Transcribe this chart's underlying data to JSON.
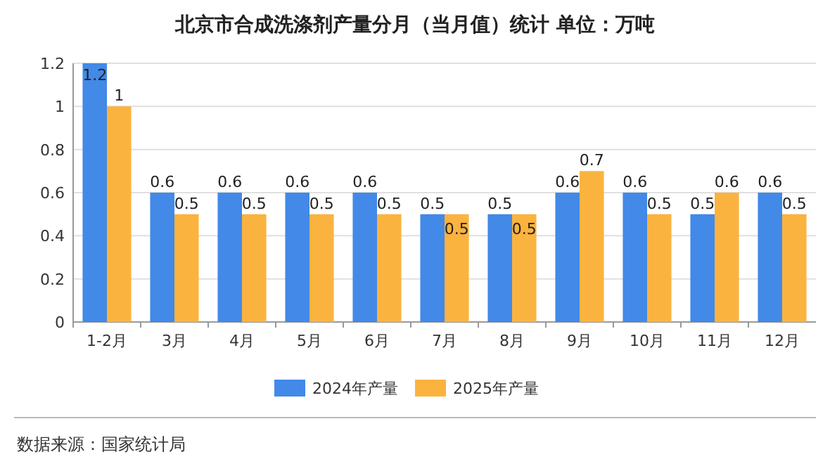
{
  "chart_data": {
    "type": "bar",
    "title": "北京市合成洗涤剂产量分月（当月值）统计  单位：万吨",
    "categories": [
      "1-2月",
      "3月",
      "4月",
      "5月",
      "6月",
      "7月",
      "8月",
      "9月",
      "10月",
      "11月",
      "12月"
    ],
    "series": [
      {
        "name": "2024年产量",
        "color": "#4289e8",
        "values": [
          1.2,
          0.6,
          0.6,
          0.6,
          0.6,
          0.5,
          0.5,
          0.6,
          0.6,
          0.5,
          0.6
        ]
      },
      {
        "name": "2025年产量",
        "color": "#fbb33f",
        "values": [
          1,
          0.5,
          0.5,
          0.5,
          0.5,
          0.5,
          0.5,
          0.7,
          0.5,
          0.6,
          0.5
        ]
      }
    ],
    "ylim": [
      0,
      1.2
    ],
    "yticks": [
      0,
      0.2,
      0.4,
      0.6,
      0.8,
      1,
      1.2
    ],
    "grid": "y",
    "legend": "bottom",
    "data_labels": true,
    "annotations": [
      "数据来源：国家统计局"
    ]
  }
}
